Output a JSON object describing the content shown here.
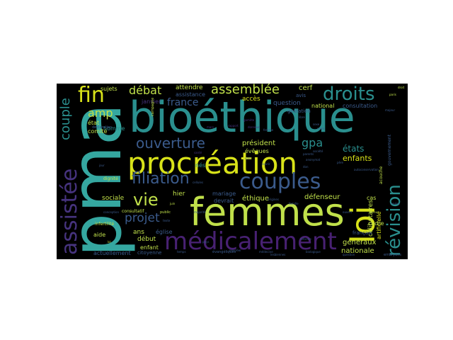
{
  "words": {
    "pma": "pma",
    "bioethique": "bioéthique",
    "femmes": "femmes",
    "procreation": "procréation",
    "loi": "loi",
    "medicalement": "médicalement",
    "assistee": "assistée",
    "couples": "couples",
    "revision": "révision",
    "droits": "droits",
    "fin": "fin",
    "filiation": "filiation",
    "ouverture": "ouverture",
    "assemblee": "assemblée",
    "debat": "débat",
    "vie": "vie",
    "couple": "couple",
    "projet": "projet",
    "amp": "amp",
    "france": "france",
    "gpa": "gpa",
    "etats": "états",
    "enfants": "enfants",
    "president": "président",
    "generaux": "généraux",
    "nationale": "nationale",
    "defenseur": "défenseur",
    "ethique": "éthique",
    "celibataires": "célibataires",
    "artificielle": "artificielle",
    "attendre": "attendre",
    "cerf": "cerf",
    "acces": "accès",
    "question": "question",
    "national": "national",
    "consultation": "consultation",
    "janvier": "janvier",
    "assistance": "assistance",
    "sujets": "sujets",
    "etat": "état",
    "comite": "comité",
    "homme": "homme",
    "eveques": "évêques",
    "hier": "hier",
    "mariage": "mariage",
    "devrait": "devrait",
    "sociale": "sociale",
    "ans": "ans",
    "eglise": "église",
    "debut": "début",
    "enfant": "enfant",
    "aide": "aide",
    "actuellement": "actuellement",
    "citoyenne": "citoyenne",
    "cadre": "cadre",
    "francais": "français",
    "cas": "cas",
    "avis": "avis",
    "gestation": "gestation",
    "infertilite": "infertilité",
    "dignite": "dignité",
    "nes": "nés",
    "public": "public",
    "declaration": "déclaration",
    "campagne": "campagne",
    "consultatif": "consultatif",
    "acouche": "acouche",
    "gouvernement": "gouvernement",
    "evangeliques": "évangéliques",
    "embryons": "embryons",
    "femme": "femme",
    "mere": "mère",
    "donneur": "donneur",
    "droit": "droit",
    "pere": "père",
    "sante": "santé",
    "societe": "société",
    "loi_small": "loi",
    "pays": "pays",
    "juin": "juin",
    "faveur": "faveur",
    "ouvert": "ouvert",
    "medecine": "médecine",
    "parents": "parents",
    "majorite": "majorité",
    "texte": "texte",
    "temps": "temps",
    "paris": "paris",
    "reforme": "réforme",
    "sexe": "sexe",
    "vote": "vote",
    "jour": "jour",
    "anonymat": "anonymat",
    "lesbiennes": "lesbiennes",
    "conception": "conception",
    "seules": "seules",
    "procreer": "procréer",
    "biologique": "biologique",
    "libre": "libre",
    "gamete": "gamète",
    "don": "don",
    "cellules": "cellules",
    "auto": "autoconservation",
    "origines": "origines",
    "famille": "famille",
    "majeur": "majeur",
    "mars": "mars",
    "rapport": "rapport",
    "ouvrir": "ouvrir",
    "question_small": "question"
  },
  "colors": {
    "yellow_green": "#c0e04a",
    "lime": "#d8e219",
    "teal": "#2a8f8e",
    "teal_light": "#35a7a0",
    "blue": "#3b5b8c",
    "indigo": "#46337e",
    "purple": "#482173",
    "green": "#53b96a",
    "green_light": "#7ad151",
    "navy": "#31568d"
  }
}
